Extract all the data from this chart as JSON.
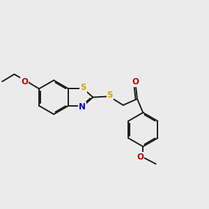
{
  "bg_color": "#ebebeb",
  "bond_color": "#1a1a1a",
  "atom_colors": {
    "S": "#ccaa00",
    "N": "#0000cc",
    "O": "#cc0000"
  },
  "font_size": 8.5,
  "figsize": [
    3.0,
    3.0
  ],
  "dpi": 100,
  "lw": 1.4
}
